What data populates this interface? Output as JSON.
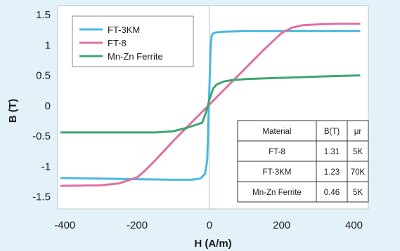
{
  "chart_data": {
    "type": "line",
    "xlabel": "H (A/m)",
    "ylabel": "B (T)",
    "xlim": [
      -420,
      440
    ],
    "ylim": [
      -1.7,
      1.65
    ],
    "xticks": [
      "-400",
      "-200",
      "0",
      "200",
      "400"
    ],
    "xtick_values": [
      -400,
      -200,
      0,
      200,
      400
    ],
    "yticks": [
      "1.5",
      "1",
      "0.5",
      "0",
      "-0.5",
      "-1",
      "-1.5"
    ],
    "ytick_values": [
      1.5,
      1,
      0.5,
      0,
      -0.5,
      -1,
      -1.5
    ],
    "grid": false,
    "legend": "top-left",
    "series": [
      {
        "name": "FT-3KM",
        "color": "#4ab8e0",
        "x": [
          -410,
          -300,
          -200,
          -100,
          -50,
          -25,
          -12,
          -6,
          -3,
          0,
          3,
          6,
          10,
          14,
          20,
          40,
          100,
          200,
          300,
          415
        ],
        "y": [
          -1.19,
          -1.2,
          -1.21,
          -1.22,
          -1.22,
          -1.2,
          -1.12,
          -0.9,
          -0.3,
          0.3,
          0.9,
          1.15,
          1.19,
          1.2,
          1.21,
          1.22,
          1.23,
          1.23,
          1.23,
          1.23
        ]
      },
      {
        "name": "FT-8",
        "color": "#e070a0",
        "x": [
          -410,
          -300,
          -250,
          -200,
          -180,
          -150,
          -100,
          -50,
          0,
          50,
          100,
          150,
          200,
          230,
          260,
          300,
          350,
          415
        ],
        "y": [
          -1.32,
          -1.31,
          -1.28,
          -1.18,
          -1.08,
          -0.9,
          -0.58,
          -0.28,
          0.02,
          0.32,
          0.62,
          0.92,
          1.2,
          1.29,
          1.33,
          1.34,
          1.35,
          1.35
        ]
      },
      {
        "name": "Mn-Zn Ferrite",
        "color": "#3ea56e",
        "x": [
          -410,
          -300,
          -150,
          -100,
          -60,
          -40,
          -20,
          -10,
          0,
          10,
          20,
          40,
          60,
          100,
          200,
          300,
          415
        ],
        "y": [
          -0.44,
          -0.44,
          -0.44,
          -0.42,
          -0.36,
          -0.32,
          -0.28,
          -0.12,
          0.1,
          0.28,
          0.35,
          0.4,
          0.42,
          0.44,
          0.46,
          0.48,
          0.5
        ]
      }
    ],
    "table": {
      "headers": [
        "Material",
        "B(T)",
        "μr"
      ],
      "rows": [
        [
          "FT-8",
          "1.31",
          "5K"
        ],
        [
          "FT-3KM",
          "1.23",
          "70K"
        ],
        [
          "Mn-Zn Ferrite",
          "0.46",
          "5K"
        ]
      ]
    }
  }
}
